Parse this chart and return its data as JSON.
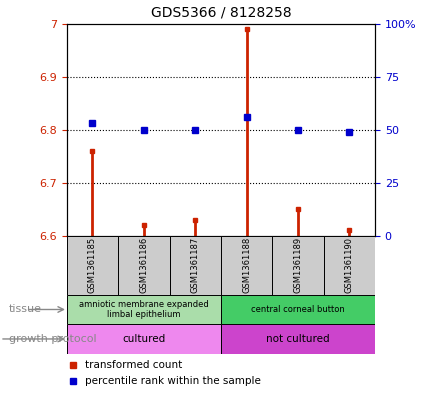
{
  "title": "GDS5366 / 8128258",
  "samples": [
    "GSM1361185",
    "GSM1361186",
    "GSM1361187",
    "GSM1361188",
    "GSM1361189",
    "GSM1361190"
  ],
  "red_values": [
    6.76,
    6.62,
    6.63,
    6.99,
    6.65,
    6.61
  ],
  "blue_values": [
    53,
    50,
    50,
    56,
    50,
    49
  ],
  "ylim_left": [
    6.6,
    7.0
  ],
  "ylim_right": [
    0,
    100
  ],
  "yticks_left": [
    6.6,
    6.7,
    6.8,
    6.9,
    7.0
  ],
  "ytick_labels_left": [
    "6.6",
    "6.7",
    "6.8",
    "6.9",
    "7"
  ],
  "yticks_right": [
    0,
    25,
    50,
    75,
    100
  ],
  "ytick_labels_right": [
    "0",
    "25",
    "50",
    "75",
    "100%"
  ],
  "red_color": "#cc2200",
  "blue_color": "#0000cc",
  "tissue_colors": [
    "#aaddaa",
    "#44cc66"
  ],
  "tissue_labels": [
    "amniotic membrane expanded\nlimbal epithelium",
    "central corneal button"
  ],
  "tissue_ranges": [
    [
      0,
      3
    ],
    [
      3,
      6
    ]
  ],
  "growth_colors": [
    "#ee88ee",
    "#cc44cc"
  ],
  "growth_labels": [
    "cultured",
    "not cultured"
  ],
  "growth_ranges": [
    [
      0,
      3
    ],
    [
      3,
      6
    ]
  ],
  "legend_items": [
    {
      "label": "transformed count",
      "color": "#cc2200"
    },
    {
      "label": "percentile rank within the sample",
      "color": "#0000cc"
    }
  ],
  "sample_bg_color": "#cccccc",
  "tissue_label": "tissue",
  "growth_label": "growth protocol"
}
